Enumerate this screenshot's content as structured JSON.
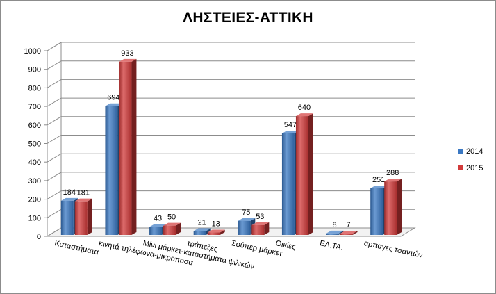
{
  "chart_data": {
    "type": "bar",
    "title": "ΛΗΣΤΕΙΕΣ-ΑΤΤΙΚΗ",
    "xlabel": "",
    "ylabel": "",
    "ylim": [
      0,
      1000
    ],
    "yticks": [
      0,
      100,
      200,
      300,
      400,
      500,
      600,
      700,
      800,
      900,
      1000
    ],
    "grid": true,
    "legend_position": "right",
    "categories": [
      "Καταστήματα",
      "κινητά τηλέφωνα-μικροποσα",
      "Μίνι μάρκετ-καταστήματα ψιλικών",
      "τράπεζες",
      "Σούπερ μάρκετ",
      "Οικίες",
      "ΕΛ.ΤΑ.",
      "αρπαγές τσαντών"
    ],
    "series": [
      {
        "name": "2014",
        "color": "#3a78c3",
        "values": [
          184,
          694,
          43,
          21,
          75,
          547,
          8,
          251
        ]
      },
      {
        "name": "2015",
        "color": "#d23a3a",
        "values": [
          181,
          933,
          50,
          13,
          53,
          640,
          7,
          288
        ]
      }
    ]
  }
}
